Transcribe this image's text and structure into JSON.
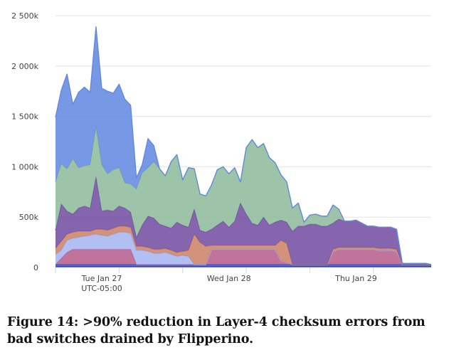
{
  "caption": "Figure 14: >90% reduction in Layer-4 checksum errors from bad switches drained by Flipperino.",
  "chart_data": {
    "type": "area",
    "stacked": true,
    "grid": "horizontal",
    "legend": "none",
    "y_ticks": [
      {
        "value": 0,
        "label": "0"
      },
      {
        "value": 500000,
        "label": "500k"
      },
      {
        "value": 1000000,
        "label": "1 000k"
      },
      {
        "value": 1500000,
        "label": "1 500k"
      },
      {
        "value": 2000000,
        "label": "2 000k"
      },
      {
        "value": 2500000,
        "label": "2 500k"
      }
    ],
    "ylim": [
      0,
      2500000
    ],
    "x_range": [
      0,
      65
    ],
    "x_ticks": [
      {
        "value": 8,
        "label": "Tue Jan 27",
        "sublabel": "UTC-05:00"
      },
      {
        "value": 30,
        "label": "Wed Jan 28",
        "sublabel": ""
      },
      {
        "value": 52,
        "label": "Thu Jan 29",
        "sublabel": ""
      }
    ],
    "x": [
      0,
      1,
      2,
      3,
      4,
      5,
      6,
      7,
      8,
      9,
      10,
      11,
      12,
      13,
      14,
      15,
      16,
      17,
      18,
      19,
      20,
      21,
      22,
      23,
      24,
      25,
      26,
      27,
      28,
      29,
      30,
      31,
      32,
      33,
      34,
      35,
      36,
      37,
      38,
      39,
      40,
      41,
      42,
      43,
      44,
      45,
      46,
      47,
      48,
      49,
      50,
      51,
      52,
      53,
      54,
      55,
      56,
      57,
      58,
      59,
      60,
      61,
      62,
      63,
      64,
      65
    ],
    "series": [
      {
        "color": "#33384f",
        "values": [
          10000,
          10000,
          10000,
          10000,
          10000,
          10000,
          10000,
          10000,
          10000,
          10000,
          10000,
          10000,
          10000,
          10000,
          10000,
          10000,
          10000,
          10000,
          10000,
          10000,
          10000,
          10000,
          10000,
          10000,
          10000,
          10000,
          10000,
          10000,
          10000,
          10000,
          10000,
          10000,
          10000,
          10000,
          10000,
          10000,
          10000,
          10000,
          10000,
          10000,
          10000,
          10000,
          10000,
          10000,
          10000,
          10000,
          10000,
          10000,
          10000,
          10000,
          10000,
          10000,
          10000,
          10000,
          10000,
          10000,
          10000,
          10000,
          10000,
          10000,
          10000,
          10000,
          10000,
          10000,
          10000,
          10000
        ]
      },
      {
        "color": "#3a4fd0",
        "values": [
          20000,
          20000,
          20000,
          20000,
          20000,
          20000,
          20000,
          20000,
          20000,
          20000,
          20000,
          20000,
          20000,
          20000,
          20000,
          20000,
          20000,
          20000,
          20000,
          20000,
          20000,
          20000,
          20000,
          20000,
          20000,
          20000,
          20000,
          20000,
          20000,
          20000,
          20000,
          20000,
          20000,
          20000,
          20000,
          20000,
          20000,
          20000,
          20000,
          20000,
          20000,
          20000,
          20000,
          20000,
          20000,
          20000,
          20000,
          20000,
          20000,
          20000,
          20000,
          20000,
          20000,
          20000,
          20000,
          20000,
          20000,
          20000,
          20000,
          20000,
          20000,
          20000,
          20000,
          20000,
          20000,
          20000
        ]
      },
      {
        "color": "#b55a8a",
        "values": [
          0,
          60000,
          120000,
          150000,
          150000,
          150000,
          150000,
          150000,
          150000,
          150000,
          150000,
          150000,
          150000,
          150000,
          0,
          0,
          0,
          0,
          0,
          0,
          0,
          0,
          0,
          0,
          0,
          0,
          0,
          150000,
          150000,
          150000,
          150000,
          150000,
          150000,
          150000,
          150000,
          150000,
          150000,
          150000,
          150000,
          40000,
          20000,
          0,
          0,
          0,
          0,
          0,
          0,
          0,
          130000,
          150000,
          150000,
          150000,
          150000,
          150000,
          150000,
          150000,
          140000,
          140000,
          140000,
          130000,
          0,
          0,
          0,
          0,
          0,
          0
        ]
      },
      {
        "color": "#a3b4f0",
        "values": [
          100000,
          80000,
          120000,
          110000,
          120000,
          130000,
          140000,
          150000,
          140000,
          130000,
          150000,
          170000,
          170000,
          160000,
          140000,
          140000,
          130000,
          110000,
          110000,
          120000,
          100000,
          80000,
          90000,
          80000,
          0,
          0,
          0,
          0,
          0,
          0,
          0,
          0,
          0,
          0,
          0,
          0,
          0,
          0,
          0,
          0,
          0,
          0,
          0,
          0,
          0,
          0,
          0,
          0,
          0,
          0,
          0,
          0,
          0,
          0,
          0,
          0,
          0,
          0,
          0,
          0,
          0,
          0,
          0,
          0,
          0,
          0
        ]
      },
      {
        "color": "#cb7f64",
        "values": [
          60000,
          90000,
          60000,
          60000,
          60000,
          50000,
          40000,
          50000,
          60000,
          60000,
          60000,
          60000,
          60000,
          60000,
          40000,
          40000,
          40000,
          40000,
          40000,
          40000,
          40000,
          40000,
          40000,
          60000,
          300000,
          220000,
          180000,
          40000,
          40000,
          40000,
          40000,
          40000,
          40000,
          40000,
          40000,
          40000,
          40000,
          40000,
          40000,
          200000,
          190000,
          0,
          0,
          0,
          0,
          0,
          0,
          0,
          20000,
          20000,
          20000,
          20000,
          20000,
          20000,
          20000,
          20000,
          20000,
          20000,
          20000,
          20000,
          0,
          0,
          0,
          0,
          0,
          0
        ]
      },
      {
        "color": "#6f4aa0",
        "values": [
          180000,
          370000,
          230000,
          180000,
          230000,
          250000,
          230000,
          520000,
          180000,
          200000,
          170000,
          200000,
          180000,
          150000,
          90000,
          210000,
          310000,
          310000,
          250000,
          220000,
          220000,
          300000,
          260000,
          230000,
          250000,
          120000,
          140000,
          160000,
          200000,
          240000,
          180000,
          240000,
          420000,
          310000,
          220000,
          200000,
          280000,
          200000,
          230000,
          200000,
          210000,
          330000,
          380000,
          380000,
          400000,
          400000,
          380000,
          380000,
          260000,
          280000,
          260000,
          260000,
          270000,
          240000,
          210000,
          210000,
          210000,
          210000,
          210000,
          200000,
          10000,
          10000,
          10000,
          10000,
          10000,
          0
        ]
      },
      {
        "color": "#8cb89a",
        "values": [
          480000,
          400000,
          420000,
          550000,
          400000,
          400000,
          430000,
          500000,
          460000,
          360000,
          410000,
          380000,
          250000,
          280000,
          480000,
          520000,
          480000,
          560000,
          550000,
          500000,
          660000,
          670000,
          450000,
          590000,
          400000,
          360000,
          360000,
          440000,
          550000,
          540000,
          530000,
          530000,
          210000,
          660000,
          830000,
          770000,
          730000,
          670000,
          590000,
          450000,
          400000,
          230000,
          230000,
          40000,
          90000,
          100000,
          100000,
          100000,
          180000,
          100000,
          0,
          0,
          0,
          0,
          0,
          0,
          0,
          0,
          0,
          0,
          0,
          0,
          0,
          0,
          0,
          0
        ]
      },
      {
        "color": "#5f87e0",
        "values": [
          640000,
          730000,
          940000,
          540000,
          750000,
          780000,
          720000,
          990000,
          760000,
          820000,
          760000,
          830000,
          830000,
          780000,
          110000,
          80000,
          290000,
          160000,
          0,
          0,
          0,
          0,
          0,
          0,
          0,
          0,
          0,
          0,
          0,
          0,
          0,
          0,
          0,
          0,
          0,
          0,
          0,
          0,
          0,
          0,
          0,
          0,
          0,
          0,
          0,
          0,
          0,
          0,
          0,
          0,
          0,
          0,
          0,
          0,
          0,
          0,
          0,
          0,
          0,
          0,
          0,
          0,
          0,
          0,
          0,
          0
        ]
      }
    ]
  }
}
